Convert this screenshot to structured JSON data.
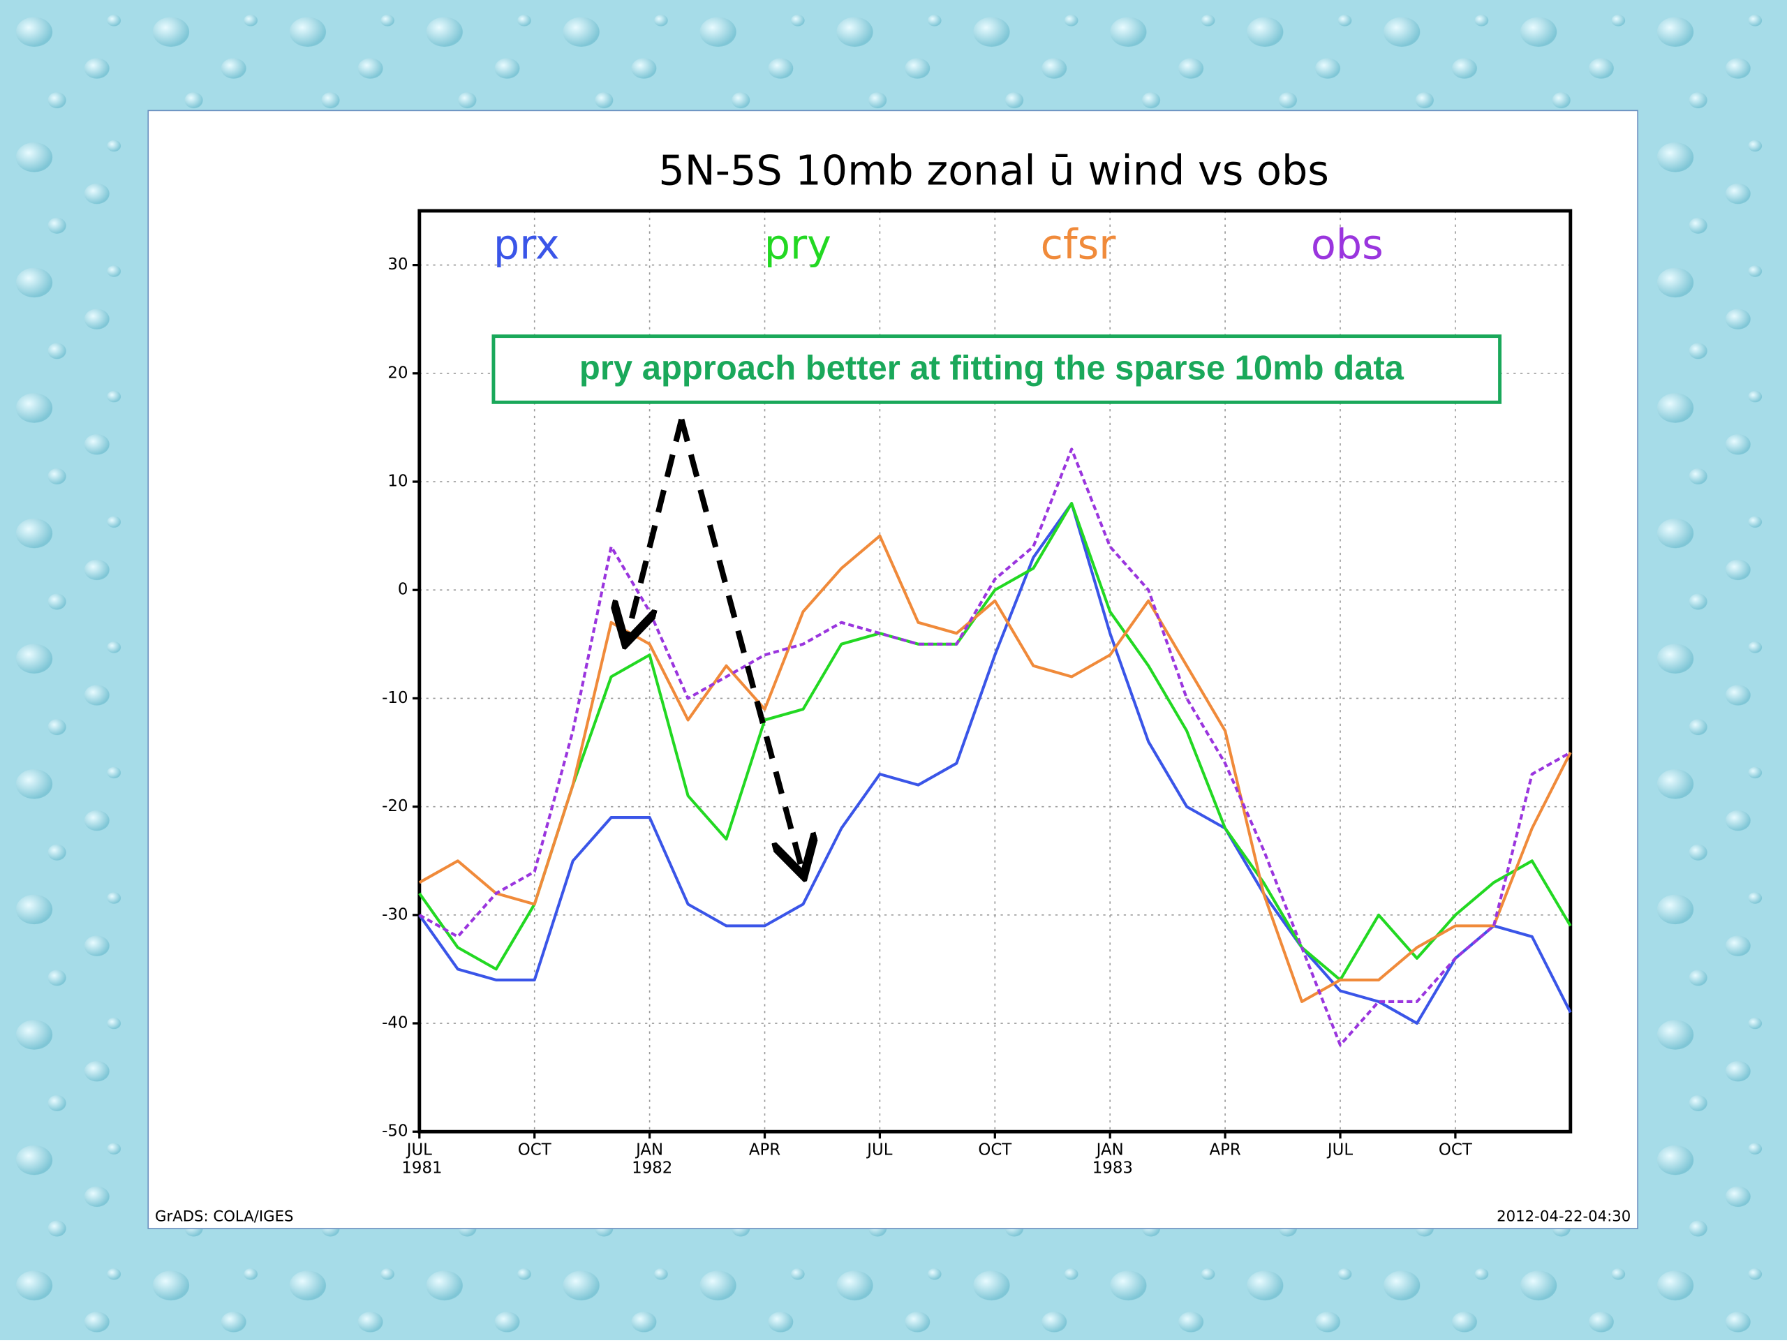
{
  "chart_data": {
    "type": "line",
    "title": "5N-5S 10mb zonal ū wind vs obs",
    "annotation": "pry approach better at fitting the sparse 10mb data",
    "footer_left": "GrADS: COLA/IGES",
    "footer_right": "2012-04-22-04:30",
    "x": [
      0,
      1,
      2,
      3,
      4,
      5,
      6,
      7,
      8,
      9,
      10,
      11,
      12,
      13,
      14,
      15,
      16,
      17,
      18,
      19,
      20,
      21,
      22,
      23,
      24,
      25,
      26,
      27,
      28,
      29,
      30
    ],
    "xlim": [
      0,
      30
    ],
    "xticks": [
      {
        "value": 0,
        "label": "JUL 1981"
      },
      {
        "value": 3,
        "label": "OCT"
      },
      {
        "value": 6,
        "label": "JAN 1982"
      },
      {
        "value": 9,
        "label": "APR"
      },
      {
        "value": 12,
        "label": "JUL"
      },
      {
        "value": 15,
        "label": "OCT"
      },
      {
        "value": 18,
        "label": "JAN 1983"
      },
      {
        "value": 21,
        "label": "APR"
      },
      {
        "value": 24,
        "label": "JUL"
      },
      {
        "value": 27,
        "label": "OCT"
      }
    ],
    "ylim": [
      -50,
      35
    ],
    "yticks": [
      -50,
      -40,
      -30,
      -20,
      -10,
      0,
      10,
      20,
      30
    ],
    "grid": true,
    "legend": "top",
    "series": [
      {
        "name": "prx",
        "color": "#3a55e8",
        "values": [
          -30,
          -35,
          -36,
          -36,
          -25,
          -21,
          -21,
          -29,
          -31,
          -31,
          -29,
          -22,
          -17,
          -18,
          -16,
          -6,
          3,
          8,
          -4,
          -14,
          -20,
          -22,
          -28,
          -33,
          -37,
          -38,
          -40,
          -34,
          -31,
          -32,
          -39
        ]
      },
      {
        "name": "pry",
        "color": "#22d822",
        "values": [
          -28,
          -33,
          -35,
          -29,
          -18,
          -8,
          -6,
          -19,
          -23,
          -12,
          -11,
          -5,
          -4,
          -5,
          -5,
          0,
          2,
          8,
          -2,
          -7,
          -13,
          -22,
          -27,
          -33,
          -36,
          -30,
          -34,
          -30,
          -27,
          -25,
          -31
        ]
      },
      {
        "name": "cfsr",
        "color": "#f08a3a",
        "values": [
          -27,
          -25,
          -28,
          -29,
          -18,
          -3,
          -5,
          -12,
          -7,
          -11,
          -2,
          2,
          5,
          -3,
          -4,
          -1,
          -7,
          -8,
          -6,
          -1,
          -7,
          -13,
          -28,
          -38,
          -36,
          -36,
          -33,
          -31,
          -31,
          -22,
          -15
        ]
      },
      {
        "name": "obs",
        "color": "#9a35de",
        "values": [
          -30,
          -32,
          -28,
          -26,
          -13,
          4,
          -2,
          -10,
          -8,
          -6,
          -5,
          -3,
          -4,
          -5,
          -5,
          1,
          4,
          13,
          4,
          0,
          -10,
          -16,
          -24,
          -33,
          -42,
          -38,
          -38,
          -34,
          -31,
          -17,
          -15
        ]
      }
    ]
  }
}
